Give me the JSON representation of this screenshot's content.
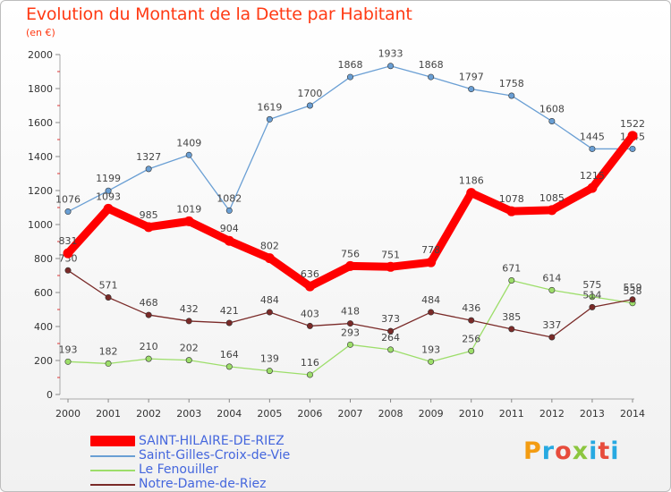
{
  "title": "Evolution du Montant de la Dette par Habitant",
  "subtitle": "(en €)",
  "logo": {
    "text": "Proxiti",
    "colors": [
      "#f39c12",
      "#27a9e1",
      "#e74c3c",
      "#8cc63f",
      "#27a9e1",
      "#e74c3c",
      "#27a9e1"
    ]
  },
  "chart_data": {
    "type": "line",
    "title": "Evolution du Montant de la Dette par Habitant",
    "subtitle": "(en €)",
    "x": [
      "2000",
      "2001",
      "2002",
      "2003",
      "2004",
      "2005",
      "2006",
      "2007",
      "2008",
      "2009",
      "2010",
      "2011",
      "2012",
      "2013",
      "2014"
    ],
    "ylim": [
      0,
      2000
    ],
    "yticks": [
      0,
      200,
      400,
      600,
      800,
      1000,
      1200,
      1400,
      1600,
      1800,
      2000
    ],
    "grid": false,
    "legend_position": "bottom-left",
    "series": [
      {
        "name": "SAINT-HILAIRE-DE-RIEZ",
        "color": "#ff0000",
        "values": [
          831,
          1093,
          985,
          1019,
          904,
          802,
          636,
          756,
          751,
          778,
          1186,
          1078,
          1085,
          1215,
          1522
        ],
        "labels": [
          "831",
          "1093",
          "985",
          "1019",
          "904",
          "802",
          "636",
          "756",
          "751",
          "778",
          "1186",
          "1078",
          "1085",
          "1215",
          "1522"
        ]
      },
      {
        "name": "Saint-Gilles-Croix-de-Vie",
        "color": "#6a9fd4",
        "values": [
          1076,
          1199,
          1327,
          1409,
          1082,
          1619,
          1700,
          1868,
          1933,
          1868,
          1797,
          1758,
          1608,
          1445,
          1445
        ],
        "labels": [
          "1076",
          "1199",
          "1327",
          "1409",
          "1082",
          "1619",
          "1700",
          "1868",
          "1933",
          "1868",
          "1797",
          "1758",
          "1608",
          "1445",
          "1445"
        ]
      },
      {
        "name": "Le Fenouiller",
        "color": "#9dde6a",
        "values": [
          193,
          182,
          210,
          202,
          164,
          139,
          116,
          293,
          264,
          193,
          256,
          671,
          614,
          575,
          538
        ],
        "labels": [
          "193",
          "182",
          "210",
          "202",
          "164",
          "139",
          "116",
          "293",
          "264",
          "193",
          "256",
          "671",
          "614",
          "575",
          "538"
        ]
      },
      {
        "name": "Notre-Dame-de-Riez",
        "color": "#7a2a28",
        "values": [
          730,
          571,
          468,
          432,
          421,
          484,
          403,
          418,
          373,
          484,
          436,
          385,
          337,
          514,
          559
        ],
        "labels": [
          "730",
          "571",
          "468",
          "432",
          "421",
          "484",
          "403",
          "418",
          "373",
          "484",
          "436",
          "385",
          "337",
          "514",
          "559"
        ]
      }
    ]
  }
}
